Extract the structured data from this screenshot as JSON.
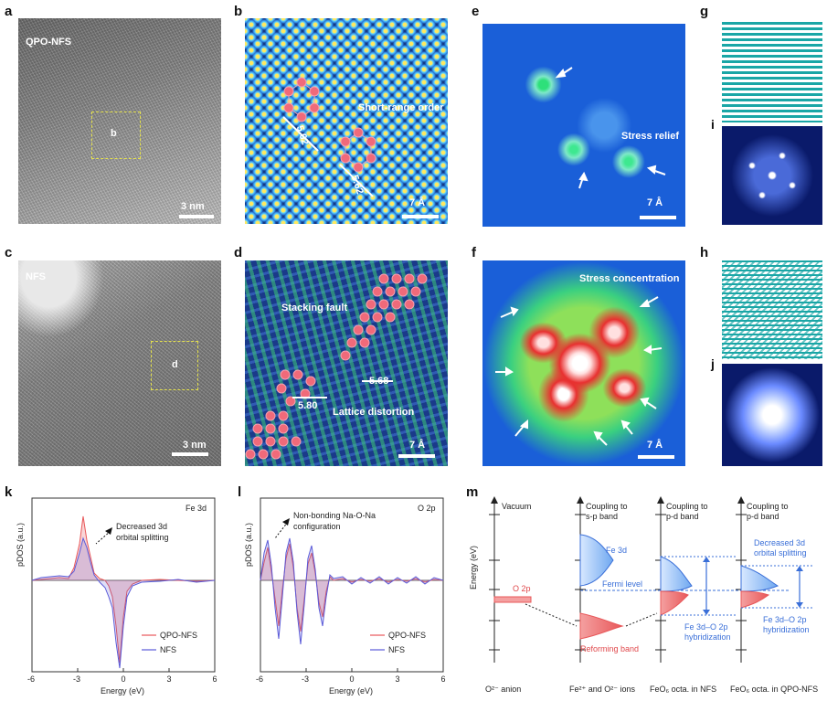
{
  "panels": {
    "a": {
      "letter": "a",
      "tag": "QPO-NFS",
      "box_label": "b",
      "scale": "3 nm"
    },
    "b": {
      "letter": "b",
      "text_order": "Short-range order",
      "dist1": "5.62",
      "dist2": "5.62",
      "scale": "7 Å"
    },
    "c": {
      "letter": "c",
      "tag": "NFS",
      "box_label": "d",
      "scale": "3 nm"
    },
    "d": {
      "letter": "d",
      "text_fault": "Stacking fault",
      "text_distortion": "Lattice distortion",
      "dist1": "5.80",
      "dist2": "5.68",
      "scale": "7 Å"
    },
    "e": {
      "letter": "e",
      "text": "Stress relief",
      "scale": "7 Å"
    },
    "f": {
      "letter": "f",
      "text": "Stress concentration",
      "scale": "7 Å"
    },
    "g": {
      "letter": "g"
    },
    "h": {
      "letter": "h"
    },
    "i": {
      "letter": "i"
    },
    "j": {
      "letter": "j"
    },
    "k": {
      "letter": "k",
      "orbital": "Fe 3d",
      "annotation_line1": "Decreased 3d",
      "annotation_line2": "orbital splitting",
      "ylabel": "pDOS (a.u.)",
      "xlabel": "Energy (eV)",
      "legend1": "QPO-NFS",
      "legend2": "NFS"
    },
    "l": {
      "letter": "l",
      "orbital": "O 2p",
      "annotation_line1": "Non-bonding Na-O-Na",
      "annotation_line2": "configuration",
      "ylabel": "pDOS (a.u.)",
      "xlabel": "Energy (eV)",
      "legend1": "QPO-NFS",
      "legend2": "NFS"
    },
    "m": {
      "letter": "m",
      "ylabel": "Energy (eV)",
      "vacuum": "Vacuum",
      "col2_head1": "Coupling to",
      "col2_head2": "s-p band",
      "col3_head1": "Coupling to",
      "col3_head2": "p-d band",
      "col4_head1": "Coupling to",
      "col4_head2": "p-d band",
      "o2p": "O 2p",
      "fe3d": "Fe 3d",
      "fermi": "Fermi level",
      "reforming": "Reforming band",
      "hyb1_line1": "Fe 3d–O 2p",
      "hyb1_line2": "hybridization",
      "hyb2_line1": "Fe 3d–O 2p",
      "hyb2_line2": "hybridization",
      "decreased1": "Decreased 3d",
      "decreased2": "orbital splitting",
      "foot1": "O²⁻ anion",
      "foot2": "Fe²⁺ and O²⁻ ions",
      "foot3": "FeO₆ octa. in NFS",
      "foot4": "FeO₆ octa. in QPO-NFS"
    }
  },
  "chart_data": [
    {
      "type": "line",
      "title": "Fe 3d",
      "xlabel": "Energy (eV)",
      "ylabel": "pDOS (a.u.)",
      "xlim": [
        -6,
        6
      ],
      "xticks": [
        "-6",
        "-3",
        "0",
        "3",
        "6"
      ],
      "series": [
        {
          "name": "QPO-NFS",
          "color": "#e8585a"
        },
        {
          "name": "NFS",
          "color": "#5a5ad8"
        }
      ]
    },
    {
      "type": "line",
      "title": "O 2p",
      "xlabel": "Energy (eV)",
      "ylabel": "pDOS (a.u.)",
      "xlim": [
        -6,
        6
      ],
      "xticks": [
        "-6",
        "-3",
        "0",
        "3",
        "6"
      ],
      "series": [
        {
          "name": "QPO-NFS",
          "color": "#e8585a"
        },
        {
          "name": "NFS",
          "color": "#5a5ad8"
        }
      ]
    }
  ],
  "colors": {
    "red": "#e8585a",
    "blue": "#5a5ad8",
    "teal": "#1aa6a6",
    "mblue": "#3a6fd8"
  }
}
